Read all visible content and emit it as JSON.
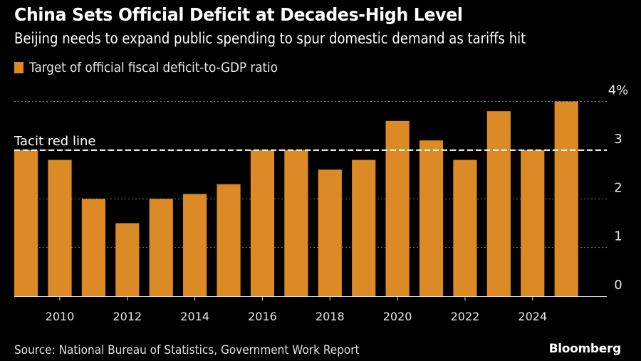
{
  "header": {
    "title": "China Sets Official Deficit at Decades-High Level",
    "subtitle": "Beijing needs to expand public spending to spur domestic demand as tariffs hit"
  },
  "footer": {
    "source": "Source: National Bureau of Statistics, Government Work Report",
    "brand": "Bloomberg"
  },
  "colors": {
    "bar": "#db8a26",
    "background": "#000000",
    "reference_line": "#ffffff",
    "grid": "#777777"
  },
  "chart_data": {
    "type": "bar",
    "title": "China Sets Official Deficit at Decades-High Level",
    "subtitle": "Beijing needs to expand public spending to spur domestic demand as tariffs hit",
    "xlabel": "",
    "ylabel": "",
    "legend": [
      {
        "name": "Target of official fiscal deficit-to-GDP ratio",
        "color": "#db8a26"
      }
    ],
    "legend_position": "top-left",
    "categories": [
      "2009",
      "2010",
      "2011",
      "2012",
      "2013",
      "2014",
      "2015",
      "2016",
      "2017",
      "2018",
      "2019",
      "2020",
      "2021",
      "2022",
      "2023",
      "2024",
      "2025"
    ],
    "series": [
      {
        "name": "Target of official fiscal deficit-to-GDP ratio",
        "values": [
          3.0,
          2.8,
          2.0,
          1.5,
          2.0,
          2.1,
          2.3,
          3.0,
          3.0,
          2.6,
          2.8,
          3.6,
          3.2,
          2.8,
          3.8,
          3.0,
          4.0
        ]
      }
    ],
    "x_tick_labels": [
      "2010",
      "2012",
      "2014",
      "2016",
      "2018",
      "2020",
      "2022",
      "2024"
    ],
    "y_tick_labels": [
      "0",
      "1",
      "2",
      "3",
      "4%"
    ],
    "y_ticks": [
      0,
      1,
      2,
      3,
      4
    ],
    "ylim": [
      0,
      4
    ],
    "grid": true,
    "y_axis_side": "right",
    "annotations": [
      {
        "type": "hline",
        "y": 3,
        "label": "Tacit red line",
        "style": "dashed"
      }
    ]
  }
}
